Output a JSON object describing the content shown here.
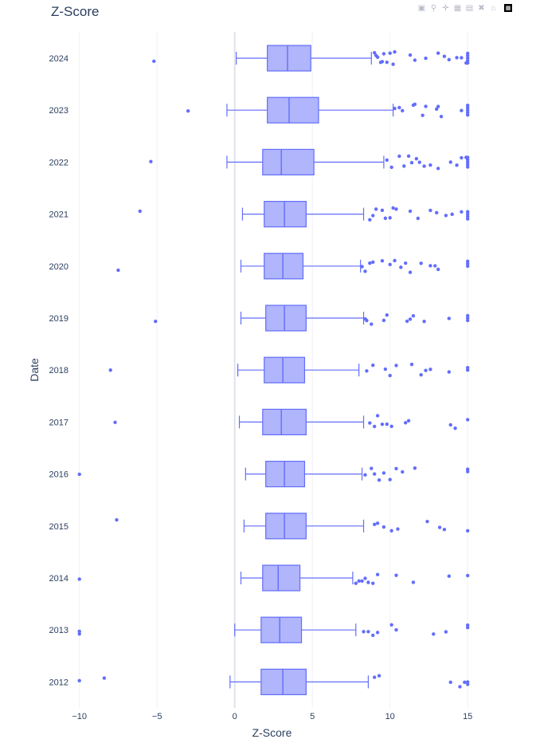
{
  "title": "Z-Score",
  "modebar": {
    "icons": [
      "camera-icon",
      "zoom-icon",
      "pan-icon",
      "zoom-in-icon",
      "zoom-out-icon",
      "autoscale-icon",
      "home-icon",
      "plotly-logo-icon"
    ]
  },
  "chart_data": {
    "type": "box",
    "orientation": "horizontal",
    "title": "Z-Score",
    "xlabel": "Z-Score",
    "ylabel": "Date",
    "xlim": [
      -10.6,
      15.4
    ],
    "x_ticks": [
      -10,
      -5,
      0,
      5,
      10,
      15
    ],
    "x_tick_labels": [
      "−10",
      "−5",
      "0",
      "5",
      "10",
      "15"
    ],
    "color": "#636efa",
    "fill_color": "#b0b5fc",
    "grid": true,
    "categories": [
      "2024",
      "2023",
      "2022",
      "2021",
      "2020",
      "2019",
      "2018",
      "2017",
      "2016",
      "2015",
      "2014",
      "2013",
      "2012"
    ],
    "boxes": [
      {
        "year": "2024",
        "lower_whisker": 0.1,
        "q1": 2.1,
        "median": 3.4,
        "q3": 4.9,
        "upper_whisker": 8.8,
        "outliers": [
          -5.2,
          9.0,
          9.2,
          9.4,
          9.6,
          9.8,
          10.0,
          10.2,
          9.1,
          9.5,
          10.3,
          11.3,
          11.6,
          12.3,
          13.1,
          13.5,
          13.8,
          14.3,
          14.6,
          14.9,
          15.0,
          15.0,
          15.0,
          15.0,
          15.0
        ]
      },
      {
        "year": "2023",
        "lower_whisker": -0.5,
        "q1": 2.1,
        "median": 3.5,
        "q3": 5.4,
        "upper_whisker": 10.2,
        "outliers": [
          -3.0,
          10.3,
          10.6,
          10.8,
          11.5,
          11.6,
          12.1,
          12.3,
          13.0,
          13.3,
          13.1,
          14.6,
          15.0,
          15.0,
          15.0,
          15.0,
          15.0
        ]
      },
      {
        "year": "2022",
        "lower_whisker": -0.5,
        "q1": 1.8,
        "median": 3.0,
        "q3": 5.1,
        "upper_whisker": 9.6,
        "outliers": [
          -5.4,
          9.8,
          10.1,
          10.6,
          10.9,
          11.2,
          11.4,
          11.7,
          11.9,
          12.2,
          12.6,
          13.1,
          13.9,
          14.3,
          14.6,
          14.9,
          15.0,
          15.0,
          15.0,
          15.0,
          15.0
        ]
      },
      {
        "year": "2021",
        "lower_whisker": 0.5,
        "q1": 1.9,
        "median": 3.2,
        "q3": 4.6,
        "upper_whisker": 8.3,
        "outliers": [
          -6.1,
          8.7,
          8.9,
          9.1,
          9.5,
          9.7,
          10.0,
          10.2,
          10.4,
          11.3,
          11.8,
          12.6,
          13.0,
          13.6,
          14.0,
          14.6,
          15.0,
          15.0,
          15.0,
          15.0
        ]
      },
      {
        "year": "2020",
        "lower_whisker": 0.4,
        "q1": 1.9,
        "median": 3.1,
        "q3": 4.4,
        "upper_whisker": 8.1,
        "outliers": [
          -7.5,
          8.2,
          8.4,
          8.7,
          8.9,
          9.5,
          10.0,
          10.3,
          10.7,
          11.0,
          11.3,
          12.0,
          12.6,
          12.9,
          13.1,
          15.0,
          15.0,
          15.0
        ]
      },
      {
        "year": "2019",
        "lower_whisker": 0.4,
        "q1": 2.0,
        "median": 3.2,
        "q3": 4.6,
        "upper_whisker": 8.3,
        "outliers": [
          -5.1,
          8.4,
          8.5,
          8.8,
          9.6,
          9.8,
          11.1,
          11.3,
          11.5,
          12.2,
          13.8,
          15.0,
          15.0,
          15.0
        ]
      },
      {
        "year": "2018",
        "lower_whisker": 0.2,
        "q1": 1.9,
        "median": 3.1,
        "q3": 4.5,
        "upper_whisker": 8.0,
        "outliers": [
          -8.0,
          8.5,
          8.9,
          9.7,
          10.0,
          10.4,
          11.4,
          12.0,
          12.3,
          12.6,
          13.8,
          15.0,
          15.0
        ]
      },
      {
        "year": "2017",
        "lower_whisker": 0.3,
        "q1": 1.8,
        "median": 3.0,
        "q3": 4.6,
        "upper_whisker": 8.3,
        "outliers": [
          -7.7,
          8.7,
          9.0,
          9.2,
          9.5,
          9.8,
          10.1,
          11.0,
          11.2,
          13.9,
          14.2,
          15.0
        ]
      },
      {
        "year": "2016",
        "lower_whisker": 0.7,
        "q1": 2.0,
        "median": 3.2,
        "q3": 4.5,
        "upper_whisker": 8.2,
        "outliers": [
          -10.0,
          8.4,
          8.8,
          9.0,
          9.3,
          9.6,
          10.0,
          10.4,
          10.8,
          11.6,
          15.0,
          15.0
        ]
      },
      {
        "year": "2015",
        "lower_whisker": 0.6,
        "q1": 2.0,
        "median": 3.2,
        "q3": 4.6,
        "upper_whisker": 8.3,
        "outliers": [
          -7.6,
          9.0,
          9.2,
          9.6,
          10.1,
          10.5,
          12.4,
          13.2,
          13.5,
          15.0
        ]
      },
      {
        "year": "2014",
        "lower_whisker": 0.4,
        "q1": 1.8,
        "median": 2.8,
        "q3": 4.2,
        "upper_whisker": 7.6,
        "outliers": [
          -10.0,
          7.8,
          8.0,
          8.2,
          8.4,
          8.6,
          8.9,
          9.2,
          10.4,
          11.5,
          13.8,
          15.0
        ]
      },
      {
        "year": "2013",
        "lower_whisker": 0.0,
        "q1": 1.7,
        "median": 2.9,
        "q3": 4.3,
        "upper_whisker": 7.8,
        "outliers": [
          -10.0,
          -10.0,
          8.3,
          8.6,
          8.9,
          9.2,
          10.1,
          10.4,
          12.8,
          13.6,
          15.0,
          15.0
        ]
      },
      {
        "year": "2012",
        "lower_whisker": -0.3,
        "q1": 1.7,
        "median": 3.1,
        "q3": 4.6,
        "upper_whisker": 8.6,
        "outliers": [
          -10.0,
          -8.4,
          9.0,
          9.3,
          13.9,
          14.5,
          14.8,
          15.0,
          15.0
        ]
      }
    ]
  }
}
